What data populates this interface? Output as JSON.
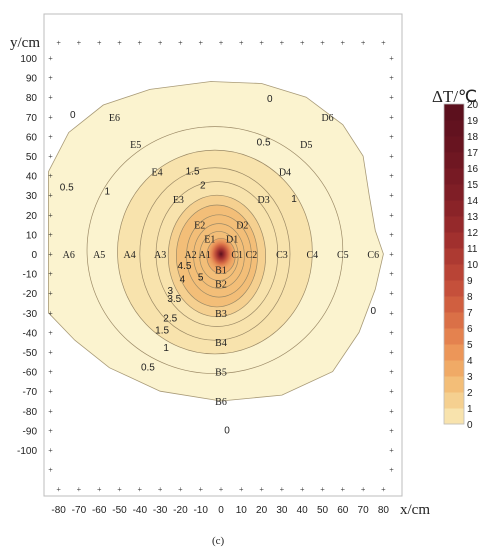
{
  "chart_data": {
    "type": "contour",
    "panel_label": "(c)",
    "xlabel": "x/cm",
    "ylabel": "y/cm",
    "xlim": [
      -85,
      85
    ],
    "ylim": [
      -125,
      112
    ],
    "x_ticks": [
      -80,
      -70,
      -60,
      -50,
      -40,
      -30,
      -20,
      -10,
      0,
      10,
      20,
      30,
      40,
      50,
      60,
      70,
      80
    ],
    "x_tick_labels": [
      "-80",
      "-70",
      "-60",
      "-50",
      "-40",
      "-30",
      "-20",
      "-10",
      "0",
      "10",
      "20",
      "30",
      "40",
      "50",
      "60",
      "70",
      "80"
    ],
    "y_ticks": [
      100,
      90,
      80,
      70,
      60,
      50,
      40,
      30,
      20,
      10,
      0,
      -10,
      -20,
      -30,
      -40,
      -50,
      -60,
      -70,
      -80,
      -90,
      -100
    ],
    "y_tick_labels": [
      "100",
      "90",
      "80",
      "70",
      "60",
      "50",
      "40",
      "30",
      "20",
      "10",
      "0",
      "-10",
      "-20",
      "-30",
      "-40",
      "-50",
      "-60",
      "-70",
      "-80",
      "-90",
      "-100"
    ],
    "colorbar": {
      "title": "ΔT/℃",
      "min": 0,
      "max": 20,
      "ticks": [
        "20",
        "19",
        "18",
        "17",
        "16",
        "15",
        "14",
        "13",
        "12",
        "11",
        "10",
        "9",
        "8",
        "7",
        "6",
        "5",
        "4",
        "3",
        "2",
        "1",
        "0"
      ],
      "colors": [
        "#fbf3cf",
        "#f8e3ad",
        "#f5d090",
        "#f3be78",
        "#f0aa66",
        "#ec9659",
        "#e4824f",
        "#da7047",
        "#d05f40",
        "#c5503b",
        "#b94436",
        "#ad3a32",
        "#a1302e",
        "#95292b",
        "#8a2328",
        "#7f1e26",
        "#771a24",
        "#6f1722",
        "#681420",
        "#62121f",
        "#5c101d"
      ]
    },
    "peak": {
      "x": 0,
      "y": 0,
      "value": 20
    },
    "contour_levels": [
      0,
      0.5,
      1,
      1.5,
      2,
      2.5,
      3,
      3.5,
      4,
      4.5,
      5
    ],
    "contour_labels": [
      {
        "text": "0",
        "x": -73,
        "y": 71
      },
      {
        "text": "0",
        "x": 24,
        "y": 79
      },
      {
        "text": "0",
        "x": 75,
        "y": -29
      },
      {
        "text": "0",
        "x": 3,
        "y": -90
      },
      {
        "text": "0.5",
        "x": -76,
        "y": 34
      },
      {
        "text": "0.5",
        "x": 21,
        "y": 57
      },
      {
        "text": "0.5",
        "x": -36,
        "y": -58
      },
      {
        "text": "1",
        "x": -56,
        "y": 32
      },
      {
        "text": "1",
        "x": 36,
        "y": 28
      },
      {
        "text": "1",
        "x": -27,
        "y": -48
      },
      {
        "text": "1.5",
        "x": -14,
        "y": 42
      },
      {
        "text": "1.5",
        "x": -29,
        "y": -39
      },
      {
        "text": "2",
        "x": -9,
        "y": 35
      },
      {
        "text": "2.5",
        "x": -25,
        "y": -33
      },
      {
        "text": "3",
        "x": -25,
        "y": -19
      },
      {
        "text": "3.5",
        "x": -23,
        "y": -23
      },
      {
        "text": "4",
        "x": -19,
        "y": -13
      },
      {
        "text": "4.5",
        "x": -18,
        "y": -6
      },
      {
        "text": "5",
        "x": -10,
        "y": -12
      }
    ],
    "sensors": [
      {
        "label": "A6",
        "x": -75,
        "y": 0
      },
      {
        "label": "A5",
        "x": -60,
        "y": 0
      },
      {
        "label": "A4",
        "x": -45,
        "y": 0
      },
      {
        "label": "A3",
        "x": -30,
        "y": 0
      },
      {
        "label": "A2",
        "x": -15,
        "y": 0
      },
      {
        "label": "A1",
        "x": -8,
        "y": 0
      },
      {
        "label": "C1",
        "x": 8,
        "y": 0
      },
      {
        "label": "C2",
        "x": 15,
        "y": 0
      },
      {
        "label": "C3",
        "x": 30,
        "y": 0
      },
      {
        "label": "C4",
        "x": 45,
        "y": 0
      },
      {
        "label": "C5",
        "x": 60,
        "y": 0
      },
      {
        "label": "C6",
        "x": 75,
        "y": 0
      },
      {
        "label": "B1",
        "x": 0,
        "y": -8
      },
      {
        "label": "B2",
        "x": 0,
        "y": -15
      },
      {
        "label": "B3",
        "x": 0,
        "y": -30
      },
      {
        "label": "B4",
        "x": 0,
        "y": -45
      },
      {
        "label": "B5",
        "x": 0,
        "y": -60
      },
      {
        "label": "B6",
        "x": 0,
        "y": -75
      },
      {
        "label": "D1",
        "x": 5.5,
        "y": 8
      },
      {
        "label": "D2",
        "x": 10.5,
        "y": 15
      },
      {
        "label": "D3",
        "x": 21,
        "y": 28
      },
      {
        "label": "D4",
        "x": 31.5,
        "y": 42
      },
      {
        "label": "D5",
        "x": 42,
        "y": 56
      },
      {
        "label": "D6",
        "x": 52.5,
        "y": 70
      },
      {
        "label": "E1",
        "x": -5.5,
        "y": 8
      },
      {
        "label": "E2",
        "x": -10.5,
        "y": 15
      },
      {
        "label": "E3",
        "x": -21,
        "y": 28
      },
      {
        "label": "E4",
        "x": -31.5,
        "y": 42
      },
      {
        "label": "E5",
        "x": -42,
        "y": 56
      },
      {
        "label": "E6",
        "x": -52.5,
        "y": 70
      }
    ]
  }
}
